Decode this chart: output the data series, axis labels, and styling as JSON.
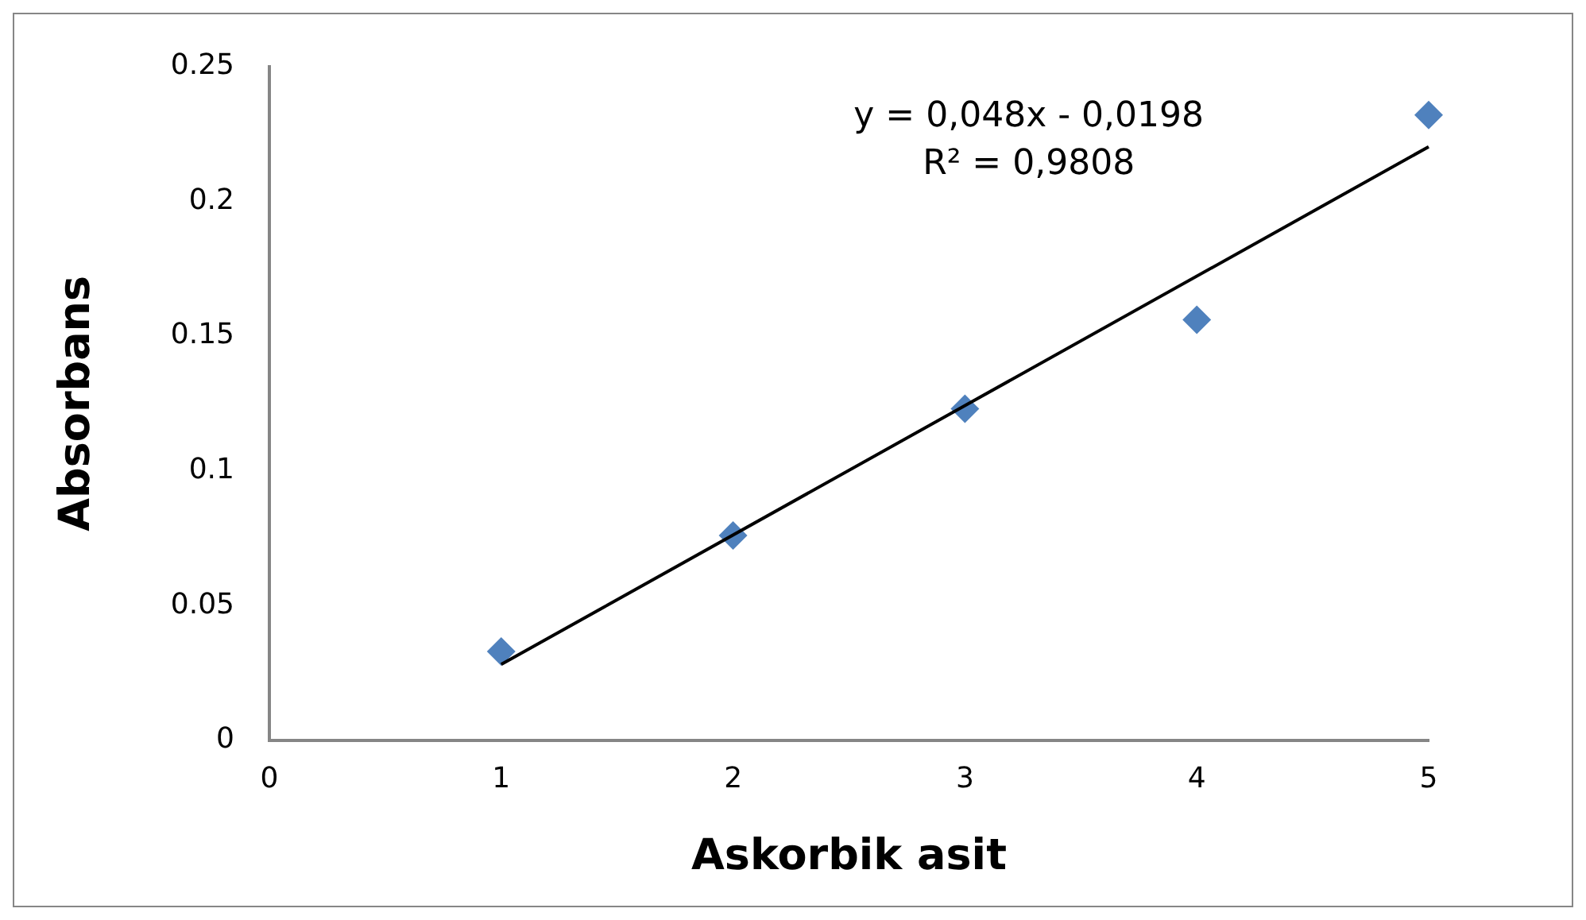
{
  "chart_data": {
    "type": "scatter",
    "xlabel": "Askorbik asit",
    "ylabel": "Absorbans",
    "xlim": [
      0,
      5
    ],
    "xticks": [
      0,
      1,
      2,
      3,
      4,
      5
    ],
    "ylim": [
      0,
      0.25
    ],
    "yticks": [
      0,
      0.05,
      0.1,
      0.15,
      0.2,
      0.25
    ],
    "grid": false,
    "legend": false,
    "marker": "diamond",
    "x": [
      1,
      2,
      3,
      4,
      5
    ],
    "series": [
      {
        "type": "scatter",
        "color": "#4f81bd",
        "values": [
          0.033,
          0.076,
          0.123,
          0.156,
          0.232
        ]
      },
      {
        "type": "line",
        "color": "#000000",
        "x": [
          1,
          5
        ],
        "values": [
          0.0282,
          0.2202
        ],
        "marker": "none",
        "line_style": "solid"
      }
    ],
    "annotations": [
      "y = 0,048x - 0,0198",
      "R² = 0,9808"
    ]
  }
}
